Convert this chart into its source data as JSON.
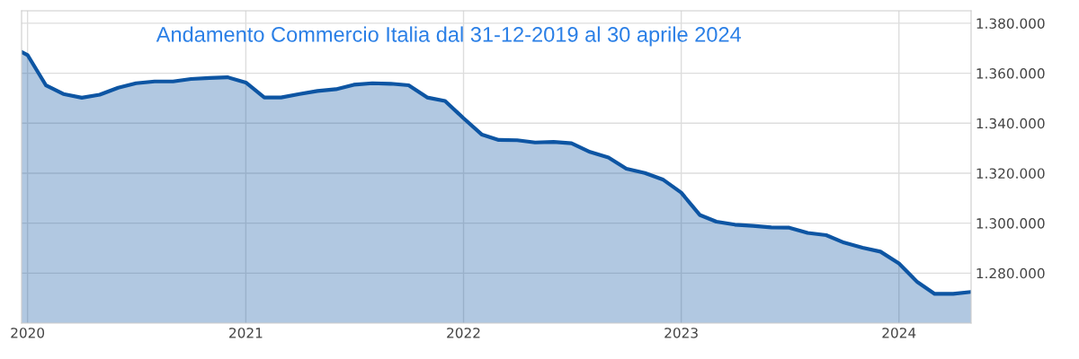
{
  "chart_data": {
    "type": "area",
    "title": "Andamento Commercio Italia dal 31-12-2019 al 30 aprile 2024",
    "x": [
      "2019-12-22",
      "2020-01-01",
      "2020-02-01",
      "2020-03-01",
      "2020-04-01",
      "2020-05-01",
      "2020-06-01",
      "2020-07-01",
      "2020-08-01",
      "2020-09-01",
      "2020-10-01",
      "2020-11-01",
      "2020-12-01",
      "2021-01-01",
      "2021-02-01",
      "2021-03-01",
      "2021-04-01",
      "2021-05-01",
      "2021-06-01",
      "2021-07-01",
      "2021-08-01",
      "2021-09-01",
      "2021-10-01",
      "2021-11-01",
      "2021-12-01",
      "2022-01-01",
      "2022-02-01",
      "2022-03-01",
      "2022-04-01",
      "2022-05-01",
      "2022-06-01",
      "2022-07-01",
      "2022-08-01",
      "2022-09-01",
      "2022-10-01",
      "2022-11-01",
      "2022-12-01",
      "2023-01-01",
      "2023-02-01",
      "2023-03-01",
      "2023-04-01",
      "2023-05-01",
      "2023-06-01",
      "2023-07-01",
      "2023-08-01",
      "2023-09-01",
      "2023-10-01",
      "2023-11-01",
      "2023-12-01",
      "2024-01-01",
      "2024-02-01",
      "2024-03-01",
      "2024-04-01",
      "2024-05-01"
    ],
    "series": [
      {
        "color": "#0d55a3",
        "values": [
          1368500,
          1367300,
          1355100,
          1351700,
          1350200,
          1351400,
          1354200,
          1356000,
          1356700,
          1356700,
          1357700,
          1358100,
          1358400,
          1356300,
          1350300,
          1350300,
          1351700,
          1352900,
          1353600,
          1355400,
          1356000,
          1355800,
          1355200,
          1350300,
          1348900,
          1342000,
          1335400,
          1333300,
          1333200,
          1332300,
          1332500,
          1332000,
          1328500,
          1326300,
          1321800,
          1320100,
          1317500,
          1312200,
          1303300,
          1300600,
          1299400,
          1298900,
          1298300,
          1298200,
          1296100,
          1295200,
          1292200,
          1290200,
          1288600,
          1283900,
          1276400,
          1271700,
          1271700,
          1272500
        ]
      }
    ],
    "xlim": [
      "2019-12-22",
      "2024-05-01"
    ],
    "xticks": [
      {
        "value": "2020-01-01",
        "label": "2020"
      },
      {
        "value": "2021-01-01",
        "label": "2021"
      },
      {
        "value": "2022-01-01",
        "label": "2022"
      },
      {
        "value": "2023-01-01",
        "label": "2023"
      },
      {
        "value": "2024-01-01",
        "label": "2024"
      }
    ],
    "ylim": [
      1260000,
      1385000
    ],
    "yticks": [
      {
        "value": 1280000,
        "label": "1.280.000"
      },
      {
        "value": 1300000,
        "label": "1.300.000"
      },
      {
        "value": 1320000,
        "label": "1.320.000"
      },
      {
        "value": 1340000,
        "label": "1.340.000"
      },
      {
        "value": 1360000,
        "label": "1.360.000"
      },
      {
        "value": 1380000,
        "label": "1.380.000"
      }
    ],
    "grid": true,
    "marker": "none",
    "line_style": "solid"
  }
}
